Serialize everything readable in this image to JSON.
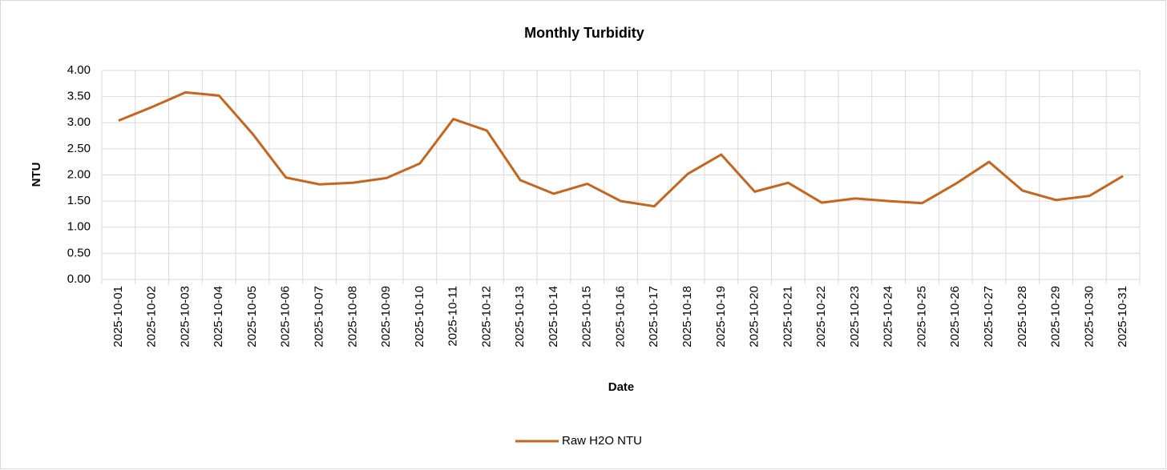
{
  "chart_data": {
    "type": "line",
    "title": "Monthly Turbidity",
    "x_label": "Date",
    "y_label": "NTU",
    "categories": [
      "2025-10-01",
      "2025-10-02",
      "2025-10-03",
      "2025-10-04",
      "2025-10-05",
      "2025-10-06",
      "2025-10-07",
      "2025-10-08",
      "2025-10-09",
      "2025-10-10",
      "2025-10-11",
      "2025-10-12",
      "2025-10-13",
      "2025-10-14",
      "2025-10-15",
      "2025-10-16",
      "2025-10-17",
      "2025-10-18",
      "2025-10-19",
      "2025-10-20",
      "2025-10-21",
      "2025-10-22",
      "2025-10-23",
      "2025-10-24",
      "2025-10-25",
      "2025-10-26",
      "2025-10-27",
      "2025-10-28",
      "2025-10-29",
      "2025-10-30",
      "2025-10-31"
    ],
    "series": [
      {
        "name": "Raw H2O NTU",
        "color": "#c5651e",
        "values": [
          3.04,
          3.3,
          3.58,
          3.52,
          2.79,
          1.95,
          1.82,
          1.85,
          1.94,
          2.22,
          3.07,
          2.85,
          1.9,
          1.64,
          1.83,
          1.5,
          1.4,
          2.02,
          2.39,
          1.68,
          1.85,
          1.47,
          1.55,
          1.5,
          1.46,
          1.83,
          2.25,
          1.7,
          1.52,
          1.6,
          1.98
        ]
      }
    ],
    "ylim": [
      0,
      4
    ],
    "yticks": [
      {
        "value": 0,
        "label": "0.00"
      },
      {
        "value": 0.5,
        "label": "0.50"
      },
      {
        "value": 1,
        "label": "1.00"
      },
      {
        "value": 1.5,
        "label": "1.50"
      },
      {
        "value": 2,
        "label": "2.00"
      },
      {
        "value": 2.5,
        "label": "2.50"
      },
      {
        "value": 3,
        "label": "3.00"
      },
      {
        "value": 3.5,
        "label": "3.50"
      },
      {
        "value": 4,
        "label": "4.00"
      }
    ],
    "grid": true,
    "legend": "bottom"
  }
}
